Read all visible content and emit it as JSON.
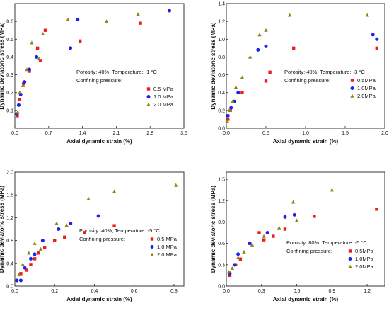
{
  "chart_data": [
    {
      "type": "scatter",
      "xlabel": "Axial dynamic strain (%)",
      "ylabel": "Dynamic deviatoric stress (MPa)",
      "xlim": [
        0,
        3.5
      ],
      "ylim": [
        0,
        0.7
      ],
      "xticks": [
        "0.0",
        "0.7",
        "1.4",
        "2.1",
        "2.8",
        "3.5"
      ],
      "yticks": [
        "0.1",
        "0.2",
        "0.3",
        "0.4",
        "0.5",
        "0.6"
      ],
      "annotation": "Porosity: 40%, Temperature: -1 °C",
      "legend_title": "Confining pressure:",
      "legend_position": "right-middle",
      "series": [
        {
          "name": "0.5 MPa",
          "color": "#ee1c1c",
          "marker": "square",
          "x": [
            0.05,
            0.1,
            0.18,
            0.3,
            0.47,
            0.53,
            0.63,
            1.35,
            2.6
          ],
          "y": [
            0.07,
            0.16,
            0.25,
            0.32,
            0.45,
            0.38,
            0.55,
            0.49,
            0.59
          ]
        },
        {
          "name": "1.0 MPa",
          "color": "#1c22ee",
          "marker": "circle",
          "x": [
            0.04,
            0.08,
            0.12,
            0.2,
            0.3,
            0.45,
            1.15,
            1.3,
            3.2
          ],
          "y": [
            0.08,
            0.13,
            0.19,
            0.26,
            0.33,
            0.4,
            0.45,
            0.61,
            0.66
          ]
        },
        {
          "name": "2.0 MPa",
          "color": "#8a8a1c",
          "marker": "triangle",
          "x": [
            0.06,
            0.1,
            0.17,
            0.25,
            0.35,
            0.5,
            0.58,
            1.1,
            1.9,
            2.55
          ],
          "y": [
            0.09,
            0.2,
            0.24,
            0.33,
            0.48,
            0.39,
            0.53,
            0.61,
            0.6,
            0.64
          ]
        }
      ]
    },
    {
      "type": "scatter",
      "xlabel": "Axial dynamic strain (%)",
      "ylabel": "Dynamic deviatoric stress (MPa)",
      "xlim": [
        0,
        2.0
      ],
      "ylim": [
        0,
        1.4
      ],
      "xticks": [
        "0.0",
        "0.5",
        "1.0",
        "1.5",
        "2.0"
      ],
      "yticks": [
        "0.0",
        "0.2",
        "0.4",
        "0.6",
        "0.8",
        "1.0",
        "1.2",
        "1.4"
      ],
      "annotation": "Porosity: 40%, Temperature: -3 °C",
      "legend_title": "Confining pressure:",
      "legend_position": "right-middle",
      "series": [
        {
          "name": "0.5MPa",
          "color": "#ee1c1c",
          "marker": "square",
          "x": [
            0.02,
            0.05,
            0.1,
            0.2,
            0.5,
            0.55,
            0.85,
            1.9
          ],
          "y": [
            0.1,
            0.2,
            0.3,
            0.4,
            0.53,
            0.63,
            0.9,
            0.9
          ]
        },
        {
          "name": "1.0MPa",
          "color": "#1c22ee",
          "marker": "circle",
          "x": [
            0.02,
            0.06,
            0.1,
            0.15,
            0.4,
            0.5,
            1.85,
            1.9
          ],
          "y": [
            0.14,
            0.23,
            0.3,
            0.4,
            0.88,
            0.92,
            1.05,
            1.0
          ]
        },
        {
          "name": "2.0MPa",
          "color": "#8a8a1c",
          "marker": "triangle",
          "x": [
            0.01,
            0.04,
            0.08,
            0.12,
            0.2,
            0.3,
            0.42,
            0.5,
            0.8,
            1.78
          ],
          "y": [
            0.08,
            0.2,
            0.3,
            0.46,
            0.57,
            0.8,
            1.05,
            1.1,
            1.27,
            1.27
          ]
        }
      ]
    },
    {
      "type": "scatter",
      "xlabel": "Axial dynamic strain (%)",
      "ylabel": "Dynamic deviatoric stress (MPa)",
      "xlim": [
        0,
        0.85
      ],
      "ylim": [
        0,
        2.0
      ],
      "xticks": [
        "0.0",
        "0.2",
        "0.4",
        "0.6",
        "0.8"
      ],
      "yticks": [
        "0.0",
        "0.4",
        "0.8",
        "1.2",
        "1.6",
        "2.0"
      ],
      "annotation": "Porosity: 40%, Temperature: -5 °C",
      "legend_title": "Confining pressure:",
      "legend_position": "right-middle",
      "series": [
        {
          "name": "0.5 MPa",
          "color": "#ee1c1c",
          "marker": "square",
          "x": [
            0.03,
            0.06,
            0.08,
            0.1,
            0.12,
            0.15,
            0.2,
            0.25,
            0.35,
            0.5
          ],
          "y": [
            0.22,
            0.28,
            0.38,
            0.48,
            0.58,
            0.68,
            0.8,
            0.86,
            0.94,
            1.06
          ]
        },
        {
          "name": "1.0 MPa",
          "color": "#1c22ee",
          "marker": "circle",
          "x": [
            0.01,
            0.03,
            0.05,
            0.08,
            0.1,
            0.14,
            0.22,
            0.28,
            0.42
          ],
          "y": [
            0.1,
            0.1,
            0.32,
            0.48,
            0.56,
            0.8,
            1.0,
            1.1,
            1.23
          ]
        },
        {
          "name": "2.0 MPa",
          "color": "#8a8a1c",
          "marker": "triangle",
          "x": [
            0.02,
            0.04,
            0.07,
            0.1,
            0.13,
            0.21,
            0.26,
            0.37,
            0.5,
            0.81
          ],
          "y": [
            0.2,
            0.38,
            0.58,
            0.75,
            0.65,
            1.1,
            1.07,
            1.53,
            1.66,
            1.77
          ]
        }
      ]
    },
    {
      "type": "scatter",
      "xlabel": "Axial dynamic strain (%)",
      "ylabel": "Dynamic deviatoric stress (MPa)",
      "xlim": [
        0,
        1.35
      ],
      "ylim": [
        0,
        1.6
      ],
      "xticks": [
        "0.0",
        "0.3",
        "0.6",
        "0.9",
        "1.2"
      ],
      "yticks": [
        "0.0",
        "0.3",
        "0.6",
        "0.9",
        "1.2",
        "1.5"
      ],
      "annotation": "Porosity: 80%, Temperature: -5 °C",
      "legend_title": "Confining pressure:",
      "legend_position": "right-bottom",
      "series": [
        {
          "name": "0.5MPa",
          "color": "#ee1c1c",
          "marker": "square",
          "x": [
            0.03,
            0.08,
            0.12,
            0.2,
            0.28,
            0.32,
            0.4,
            0.5,
            0.75,
            1.28
          ],
          "y": [
            0.15,
            0.3,
            0.38,
            0.6,
            0.75,
            0.65,
            0.7,
            0.8,
            0.98,
            1.08
          ]
        },
        {
          "name": "1.0MPa",
          "color": "#1c22ee",
          "marker": "circle",
          "x": [
            0.03,
            0.07,
            0.1,
            0.2,
            0.35,
            0.5,
            0.58
          ],
          "y": [
            0.18,
            0.3,
            0.45,
            0.6,
            0.75,
            0.97,
            1.0
          ]
        },
        {
          "name": "2.0MPa",
          "color": "#8a8a1c",
          "marker": "triangle",
          "x": [
            0.02,
            0.05,
            0.1,
            0.15,
            0.22,
            0.32,
            0.45,
            0.57,
            0.6,
            0.9
          ],
          "y": [
            0.2,
            0.25,
            0.4,
            0.48,
            0.58,
            0.7,
            0.82,
            1.18,
            0.92,
            1.35
          ]
        }
      ]
    }
  ]
}
